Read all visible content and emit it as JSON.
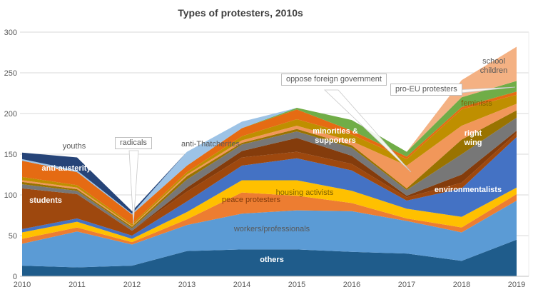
{
  "title": "Types of protesters, 2010s",
  "chart_data": {
    "type": "area",
    "stacked": true,
    "title": "Types of protesters, 2010s",
    "xlabel": "",
    "ylabel": "",
    "x": [
      2010,
      2011,
      2012,
      2013,
      2014,
      2015,
      2016,
      2017,
      2018,
      2019
    ],
    "ylim": [
      0,
      300
    ],
    "yticks": [
      0,
      50,
      100,
      150,
      200,
      250,
      300
    ],
    "grid": "horizontal",
    "legend": "none (labels annotated on chart)",
    "gridline_color": "#D9D9D9",
    "axis_line_color": "#BFBFBF",
    "tick_label_color": "#595959",
    "series": [
      {
        "name": "others",
        "color": "#1F5C8B",
        "values": [
          13,
          11,
          13,
          31,
          33,
          33,
          30,
          28,
          19,
          45
        ]
      },
      {
        "name": "workers/professionals",
        "color": "#5B9BD5",
        "values": [
          27,
          44,
          26,
          32,
          44,
          48,
          50,
          40,
          35,
          48
        ]
      },
      {
        "name": "peace protesters",
        "color": "#ED7D31",
        "values": [
          6,
          5,
          3,
          7,
          26,
          18,
          10,
          3,
          6,
          8
        ]
      },
      {
        "name": "housing activists",
        "color": "#FFC000",
        "values": [
          8,
          7,
          4,
          9,
          15,
          19,
          15,
          12,
          13,
          8
        ]
      },
      {
        "name": "environmentalists",
        "color": "#4472C4",
        "values": [
          4,
          4,
          4,
          13,
          18,
          27,
          25,
          10,
          35,
          62
        ]
      },
      {
        "name": "students",
        "color": "#9E480E",
        "values": [
          50,
          30,
          6,
          12,
          10,
          8,
          8,
          4,
          7,
          5
        ]
      },
      {
        "name": "minorities & supporters",
        "color": "#843C0C",
        "values": [
          0,
          0,
          0,
          5,
          8,
          17,
          10,
          2,
          10,
          3
        ]
      },
      {
        "name": "right wing",
        "color": "#777777",
        "values": [
          5,
          4,
          3,
          10,
          8,
          8,
          10,
          7,
          25,
          16
        ]
      },
      {
        "name": "radicals",
        "color": "#997300",
        "values": [
          3,
          2,
          2,
          4,
          2,
          3,
          3,
          2,
          18,
          9
        ]
      },
      {
        "name": "oppose foreign government",
        "color": "#F1975A",
        "values": [
          2,
          2,
          1,
          2,
          3,
          4,
          5,
          28,
          17,
          8
        ]
      },
      {
        "name": "feminists",
        "color": "#BF8F00",
        "values": [
          4,
          3,
          2,
          3,
          5,
          8,
          8,
          8,
          20,
          11
        ]
      },
      {
        "name": "anti-austerity",
        "color": "#E56B13",
        "values": [
          20,
          16,
          12,
          8,
          10,
          12,
          5,
          3,
          3,
          4
        ]
      },
      {
        "name": "pro-EU protesters",
        "color": "#70AD47",
        "values": [
          0,
          0,
          0,
          0,
          0,
          2,
          13,
          6,
          12,
          13
        ]
      },
      {
        "name": "anti-Thatcherites",
        "color": "#9DC3E6",
        "values": [
          2,
          2,
          1,
          17,
          8,
          0,
          0,
          0,
          0,
          0
        ]
      },
      {
        "name": "youths",
        "color": "#264478",
        "values": [
          8,
          16,
          3,
          0,
          0,
          0,
          0,
          0,
          0,
          0
        ]
      },
      {
        "name": "school children",
        "color": "#F4B183",
        "values": [
          0,
          0,
          0,
          0,
          0,
          0,
          0,
          0,
          21,
          42
        ]
      }
    ]
  },
  "annotations": {
    "youths": {
      "text": "youths"
    },
    "radicals": {
      "text": "radicals",
      "boxed": true
    },
    "anti_thatcherites": {
      "text": "anti-Thatcherites"
    },
    "anti_austerity": {
      "text": "anti-austerity"
    },
    "students": {
      "text": "students"
    },
    "minorities": {
      "text": "minorities & supporters"
    },
    "peace_protesters": {
      "text": "peace protesters"
    },
    "housing_activists": {
      "text": "housing activists"
    },
    "workers": {
      "text": "workers/professionals"
    },
    "others": {
      "text": "others"
    },
    "oppose_foreign": {
      "text": "oppose foreign government",
      "boxed": true
    },
    "pro_eu": {
      "text": "pro-EU protesters",
      "boxed": true
    },
    "feminists": {
      "text": "feminists"
    },
    "school_children": {
      "text": "school children"
    },
    "right_wing": {
      "text": "right wing"
    },
    "environmentalists": {
      "text": "environmentalists"
    }
  }
}
